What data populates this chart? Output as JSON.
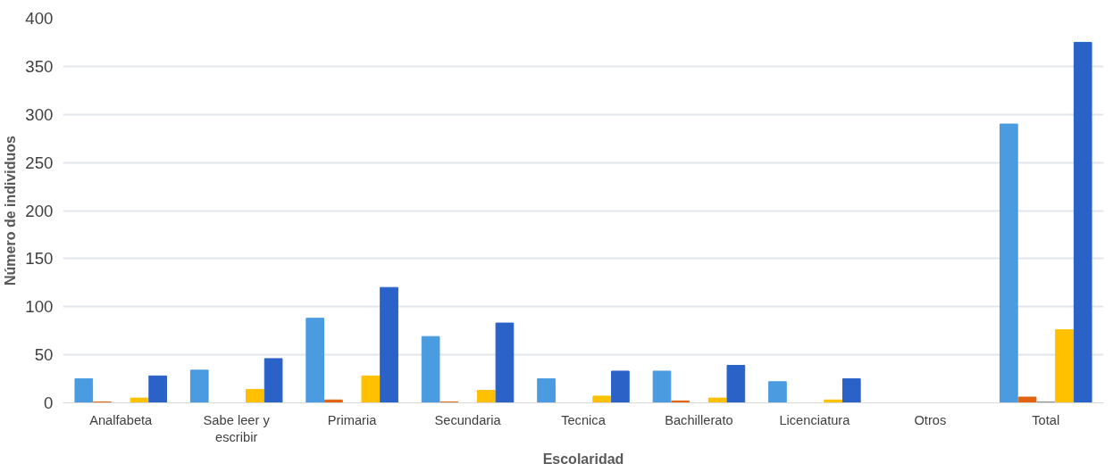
{
  "chart_data": {
    "type": "bar",
    "xlabel": "Escolaridad",
    "ylabel": "Número de individuos",
    "categories": [
      "Analfabeta",
      "Sabe leer y escribir",
      "Primaria",
      "Secundaria",
      "Tecnica",
      "Bachillerato",
      "Licenciatura",
      "Otros",
      "Total"
    ],
    "series": [
      {
        "color": "#4a9be0",
        "values": [
          25,
          34,
          88,
          69,
          25,
          33,
          22,
          0,
          290
        ]
      },
      {
        "color": "#e0640f",
        "values": [
          1,
          0,
          3,
          1,
          0,
          2,
          0,
          0,
          6
        ]
      },
      {
        "color": "#8c8c8c",
        "values": [
          0,
          0,
          0,
          0,
          0,
          0,
          0,
          0,
          1
        ]
      },
      {
        "color": "#ffc000",
        "values": [
          5,
          14,
          28,
          13,
          7,
          5,
          3,
          0,
          76
        ]
      },
      {
        "color": "#2a62c8",
        "values": [
          28,
          46,
          120,
          83,
          33,
          39,
          25,
          0,
          375
        ]
      }
    ],
    "ylim": [
      0,
      400
    ],
    "yticks": [
      0,
      50,
      100,
      150,
      200,
      250,
      300,
      350,
      400
    ],
    "grid": "y"
  }
}
